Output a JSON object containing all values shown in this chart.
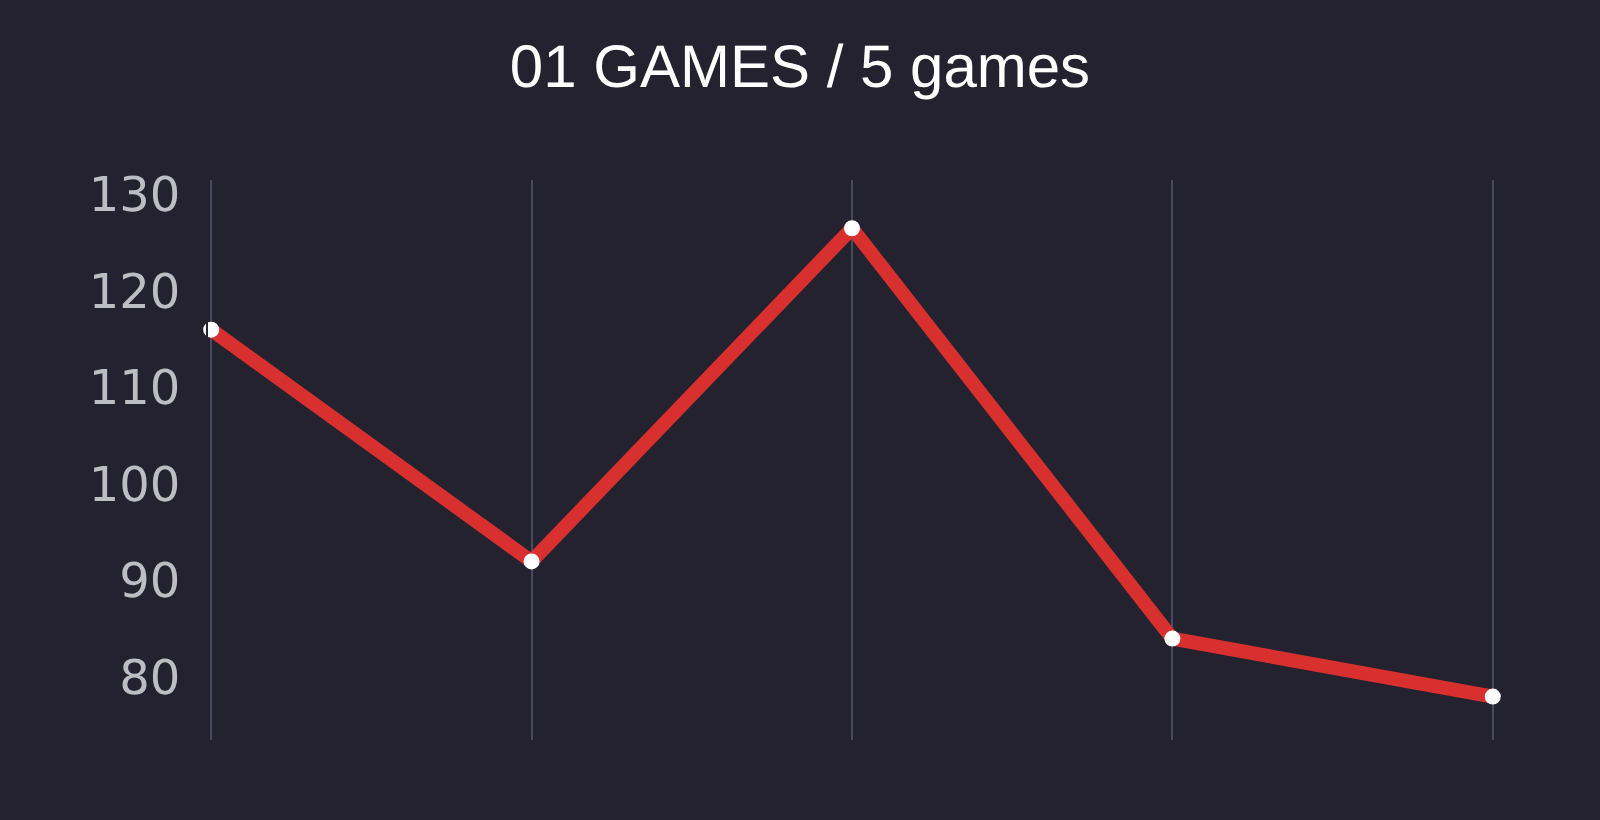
{
  "chart_data": {
    "type": "line",
    "title": "01 GAMES / 5 games",
    "categories": [
      null,
      null,
      null,
      null,
      null
    ],
    "series": [
      {
        "color": "#d8302f",
        "values": [
          116,
          92,
          126.5,
          84,
          78
        ]
      }
    ],
    "ylim": [
      73.5,
      131.5
    ],
    "yticks": [
      80,
      90,
      100,
      110,
      120,
      130
    ],
    "grid": "x",
    "marker": "circle",
    "line_style": "solid",
    "tick_labels": "y"
  }
}
